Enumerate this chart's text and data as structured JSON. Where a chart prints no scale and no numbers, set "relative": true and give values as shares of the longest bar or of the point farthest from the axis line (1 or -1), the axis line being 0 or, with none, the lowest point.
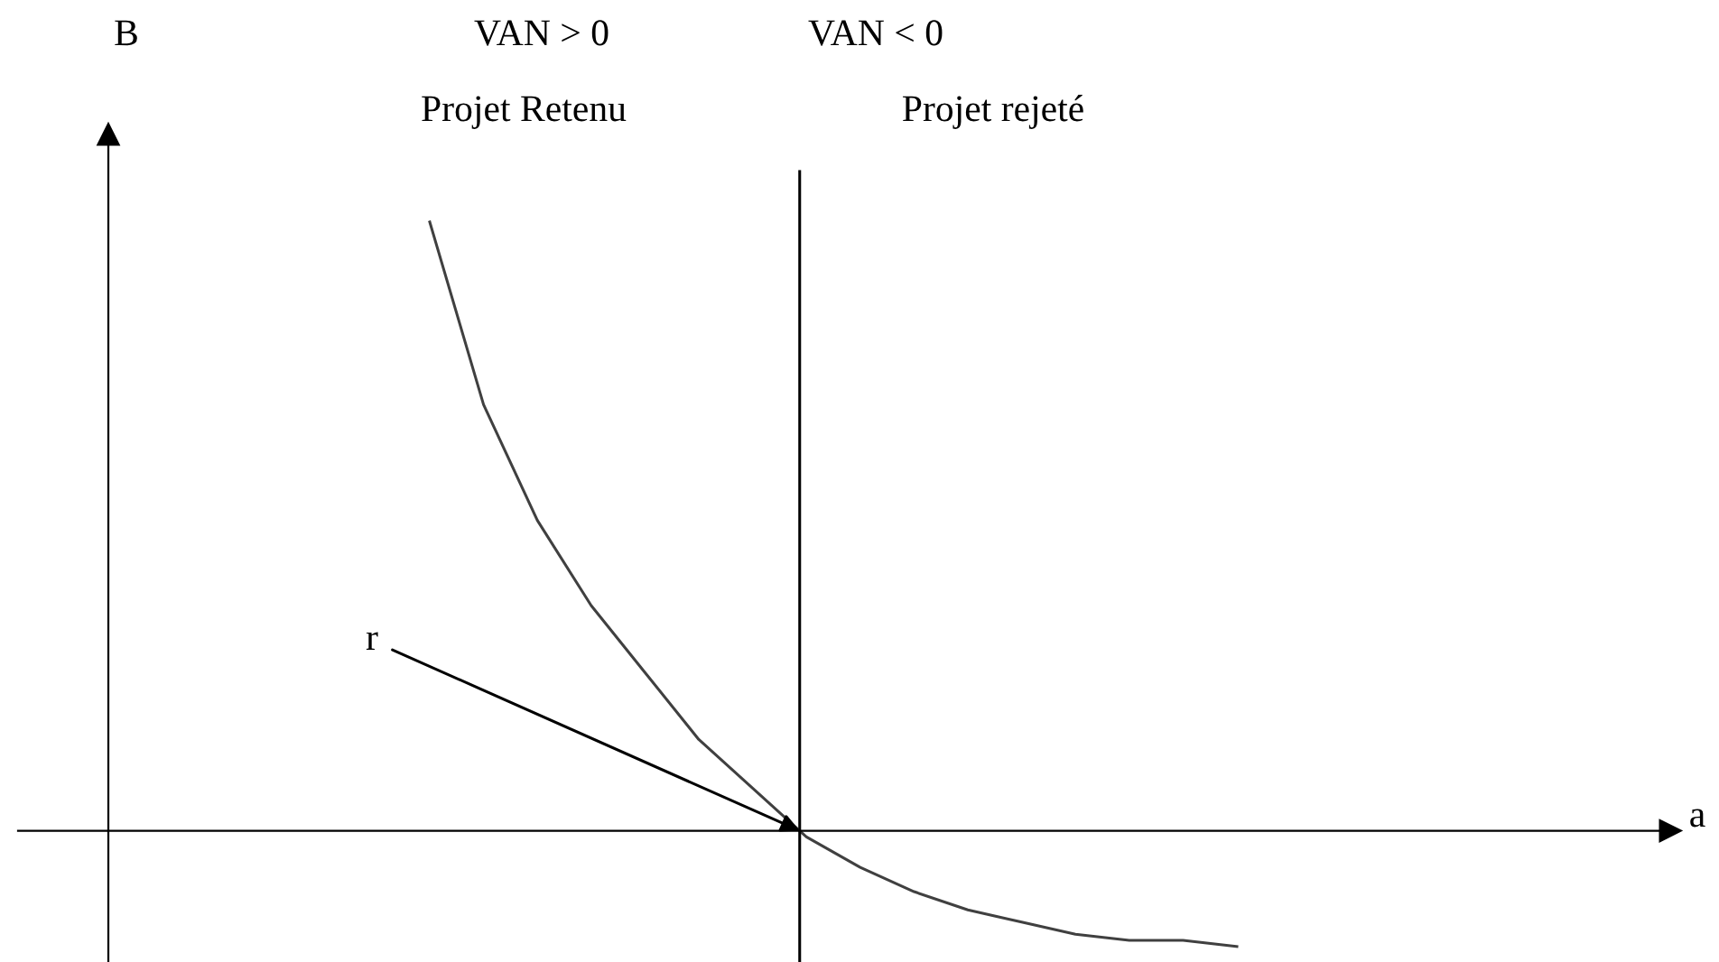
{
  "chart_data": {
    "type": "line",
    "relative": true,
    "categories": [
      null,
      null,
      null,
      null,
      null,
      null,
      null,
      null,
      null,
      null,
      null,
      null,
      null,
      null,
      null,
      null
    ],
    "series": [
      {
        "color": "#404040",
        "values": [
          1.0,
          0.7,
          0.51,
          0.37,
          0.26,
          0.15,
          0.07,
          -0.01,
          -0.06,
          -0.1,
          -0.13,
          -0.15,
          -0.17,
          -0.18,
          -0.18,
          -0.19
        ]
      }
    ],
    "annotations": [
      "VAN > 0",
      "VAN < 0",
      "Projet Retenu",
      "Projet rejeté",
      "r",
      "B",
      "a"
    ],
    "grid": false,
    "marker": "none",
    "line_style": "solid"
  }
}
